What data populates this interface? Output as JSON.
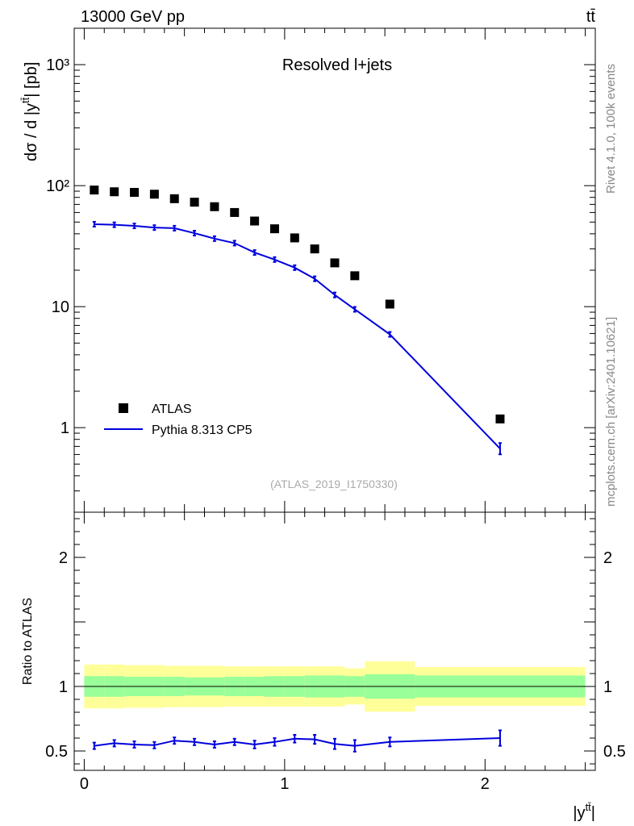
{
  "header": {
    "energy_label": "13000 GeV pp",
    "process_label": "tt̄"
  },
  "side_labels": {
    "rivet": "Rivet 4.1.0,  100k events",
    "mcplots": "mcplots.cern.ch [arXiv:2401.10621]"
  },
  "chart_data": {
    "type": "scatter",
    "title": "Resolved l+jets",
    "analysis_id": "(ATLAS_2019_I1750330)",
    "ylabel": "dσ / d |y",
    "ylabel_sup": "tt̄",
    "ylabel_tail": "| [pb]",
    "xlabel": "|y",
    "xlabel_sup": "tt̄",
    "xlabel_tail": "|",
    "xlim": [
      -0.05,
      2.55
    ],
    "ylim_main": [
      0.2,
      2000
    ],
    "ylim_ratio": [
      0.35,
      2.35
    ],
    "main_ticks": [
      {
        "v": 1,
        "label": "1"
      },
      {
        "v": 10,
        "label": "10"
      },
      {
        "v": 100,
        "label": "10²"
      },
      {
        "v": 1000,
        "label": "10³"
      }
    ],
    "x_ticks": [
      {
        "v": 0,
        "label": "0"
      },
      {
        "v": 1,
        "label": "1"
      },
      {
        "v": 2,
        "label": "2"
      }
    ],
    "ratio_ticks": [
      {
        "v": 0.5,
        "label": "0.5"
      },
      {
        "v": 1,
        "label": "1"
      },
      {
        "v": 2,
        "label": "2"
      }
    ],
    "ratio_ylabel": "Ratio to ATLAS",
    "bin_edges": [
      0,
      0.1,
      0.2,
      0.3,
      0.4,
      0.5,
      0.6,
      0.7,
      0.8,
      0.9,
      1.0,
      1.1,
      1.2,
      1.3,
      1.4,
      1.65,
      2.5
    ],
    "legend": [
      "ATLAS",
      "Pythia 8.313 CP5"
    ],
    "series": [
      {
        "name": "ATLAS",
        "x": [
          0.05,
          0.15,
          0.25,
          0.35,
          0.45,
          0.55,
          0.65,
          0.75,
          0.85,
          0.95,
          1.05,
          1.15,
          1.25,
          1.35,
          1.525,
          2.075
        ],
        "values": [
          92,
          89,
          88,
          85,
          78,
          73,
          67,
          60,
          51,
          44,
          37,
          30,
          23,
          18,
          10.5,
          1.18
        ]
      },
      {
        "name": "Pythia 8.313 CP5",
        "x": [
          0.05,
          0.15,
          0.25,
          0.35,
          0.45,
          0.55,
          0.65,
          0.75,
          0.85,
          0.95,
          1.05,
          1.15,
          1.25,
          1.35,
          1.525,
          2.075
        ],
        "values": [
          48,
          47.5,
          46.5,
          45,
          44.5,
          40.5,
          36.5,
          33.5,
          28,
          24.5,
          21,
          17,
          12.5,
          9.5,
          5.9,
          0.67
        ],
        "ratio": [
          0.54,
          0.56,
          0.55,
          0.545,
          0.58,
          0.57,
          0.55,
          0.57,
          0.55,
          0.57,
          0.595,
          0.59,
          0.555,
          0.54,
          0.57,
          0.6
        ],
        "ratio_err": [
          0.025,
          0.025,
          0.025,
          0.025,
          0.025,
          0.025,
          0.025,
          0.025,
          0.03,
          0.03,
          0.03,
          0.035,
          0.04,
          0.045,
          0.035,
          0.06
        ]
      }
    ],
    "bands": {
      "inner": [
        0.08,
        0.08,
        0.075,
        0.075,
        0.075,
        0.07,
        0.07,
        0.075,
        0.075,
        0.08,
        0.08,
        0.085,
        0.085,
        0.08,
        0.095,
        0.085
      ],
      "outer": [
        0.17,
        0.17,
        0.165,
        0.165,
        0.16,
        0.16,
        0.16,
        0.155,
        0.155,
        0.155,
        0.155,
        0.155,
        0.155,
        0.14,
        0.195,
        0.15
      ]
    },
    "colors": {
      "data": "#000000",
      "mc": "#0000dd",
      "band_inner": "#99ff99",
      "band_outer": "#ffff99"
    }
  }
}
